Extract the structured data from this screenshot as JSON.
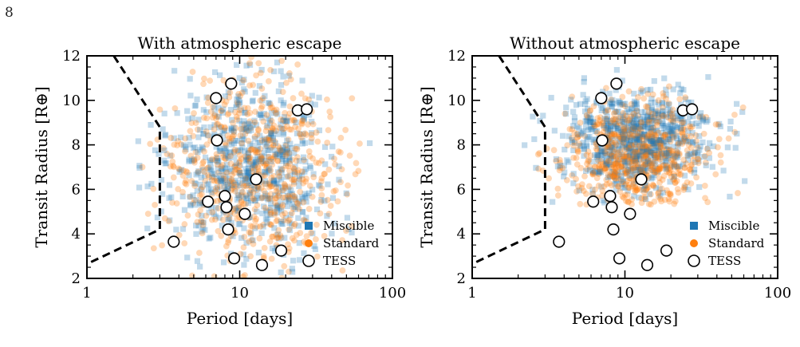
{
  "page_number": "8",
  "colors": {
    "miscible": "#1f77b4",
    "standard": "#ff7f0e",
    "tess_edge": "#000000",
    "boundary": "#000000"
  },
  "chart_data": [
    {
      "type": "scatter",
      "title": "With atmospheric escape",
      "xlabel": "Period [days]",
      "ylabel": "Transit Radius [R⊕]",
      "xscale": "log",
      "xlim": [
        1,
        100
      ],
      "ylim": [
        2,
        12
      ],
      "xticks": [
        {
          "v": 1,
          "label": "1"
        },
        {
          "v": 10,
          "label": "10"
        },
        {
          "v": 100,
          "label": "100"
        }
      ],
      "yticks": [
        {
          "v": 2,
          "label": "2"
        },
        {
          "v": 4,
          "label": "4"
        },
        {
          "v": 6,
          "label": "6"
        },
        {
          "v": 8,
          "label": "8"
        },
        {
          "v": 10,
          "label": "10"
        },
        {
          "v": 12,
          "label": "12"
        }
      ],
      "legend": {
        "placement": "lower-right",
        "entries": [
          "Miscible",
          "Standard",
          "TESS"
        ]
      },
      "boundary": {
        "x": [
          1.5,
          3.0,
          3.0,
          1.0
        ],
        "y": [
          12,
          8.8,
          4.2,
          2.65
        ]
      },
      "clouds": [
        {
          "series": "Miscible",
          "count": 650,
          "center_log10_period": 1.05,
          "spread_log10_period": 0.27,
          "center_radius": 7.0,
          "spread_radius": 2.0,
          "radius_min": 2.0,
          "radius_max": 12.0,
          "seed": 11
        },
        {
          "series": "Standard",
          "count": 650,
          "center_log10_period": 1.08,
          "spread_log10_period": 0.27,
          "center_radius": 6.6,
          "spread_radius": 2.1,
          "radius_min": 2.0,
          "radius_max": 12.0,
          "seed": 23
        }
      ],
      "tess": [
        {
          "x": 3.7,
          "y": 3.65
        },
        {
          "x": 6.2,
          "y": 5.45
        },
        {
          "x": 7.0,
          "y": 10.1
        },
        {
          "x": 7.1,
          "y": 8.2
        },
        {
          "x": 8.0,
          "y": 5.7
        },
        {
          "x": 8.2,
          "y": 5.2
        },
        {
          "x": 8.4,
          "y": 4.2
        },
        {
          "x": 8.8,
          "y": 10.75
        },
        {
          "x": 9.2,
          "y": 2.9
        },
        {
          "x": 10.8,
          "y": 4.9
        },
        {
          "x": 12.8,
          "y": 6.45
        },
        {
          "x": 14.0,
          "y": 2.6
        },
        {
          "x": 18.7,
          "y": 3.25
        },
        {
          "x": 24.0,
          "y": 9.55
        },
        {
          "x": 27.5,
          "y": 9.6
        }
      ]
    },
    {
      "type": "scatter",
      "title": "Without atmospheric escape",
      "xlabel": "Period [days]",
      "ylabel": "Transit Radius [R⊕]",
      "xscale": "log",
      "xlim": [
        1,
        100
      ],
      "ylim": [
        2,
        12
      ],
      "xticks": [
        {
          "v": 1,
          "label": "1"
        },
        {
          "v": 10,
          "label": "10"
        },
        {
          "v": 100,
          "label": "100"
        }
      ],
      "yticks": [
        {
          "v": 2,
          "label": "2"
        },
        {
          "v": 4,
          "label": "4"
        },
        {
          "v": 6,
          "label": "6"
        },
        {
          "v": 8,
          "label": "8"
        },
        {
          "v": 10,
          "label": "10"
        },
        {
          "v": 12,
          "label": "12"
        }
      ],
      "legend": {
        "placement": "lower-right",
        "entries": [
          "Miscible",
          "Standard",
          "TESS"
        ]
      },
      "boundary": {
        "x": [
          1.5,
          3.0,
          3.0,
          1.0
        ],
        "y": [
          12,
          8.8,
          4.2,
          2.65
        ]
      },
      "clouds": [
        {
          "series": "Miscible",
          "count": 700,
          "center_log10_period": 1.08,
          "spread_log10_period": 0.23,
          "center_radius": 8.3,
          "spread_radius": 1.2,
          "radius_min": 5.3,
          "radius_max": 11.6,
          "seed": 37
        },
        {
          "series": "Standard",
          "count": 700,
          "center_log10_period": 1.08,
          "spread_log10_period": 0.23,
          "center_radius": 7.6,
          "spread_radius": 1.2,
          "radius_min": 5.3,
          "radius_max": 11.8,
          "seed": 41
        }
      ],
      "tess": [
        {
          "x": 3.7,
          "y": 3.65
        },
        {
          "x": 6.2,
          "y": 5.45
        },
        {
          "x": 7.0,
          "y": 10.1
        },
        {
          "x": 7.1,
          "y": 8.2
        },
        {
          "x": 8.0,
          "y": 5.7
        },
        {
          "x": 8.2,
          "y": 5.2
        },
        {
          "x": 8.4,
          "y": 4.2
        },
        {
          "x": 8.8,
          "y": 10.75
        },
        {
          "x": 9.2,
          "y": 2.9
        },
        {
          "x": 10.8,
          "y": 4.9
        },
        {
          "x": 12.8,
          "y": 6.45
        },
        {
          "x": 14.0,
          "y": 2.6
        },
        {
          "x": 18.7,
          "y": 3.25
        },
        {
          "x": 24.0,
          "y": 9.55
        },
        {
          "x": 27.5,
          "y": 9.6
        }
      ]
    }
  ]
}
